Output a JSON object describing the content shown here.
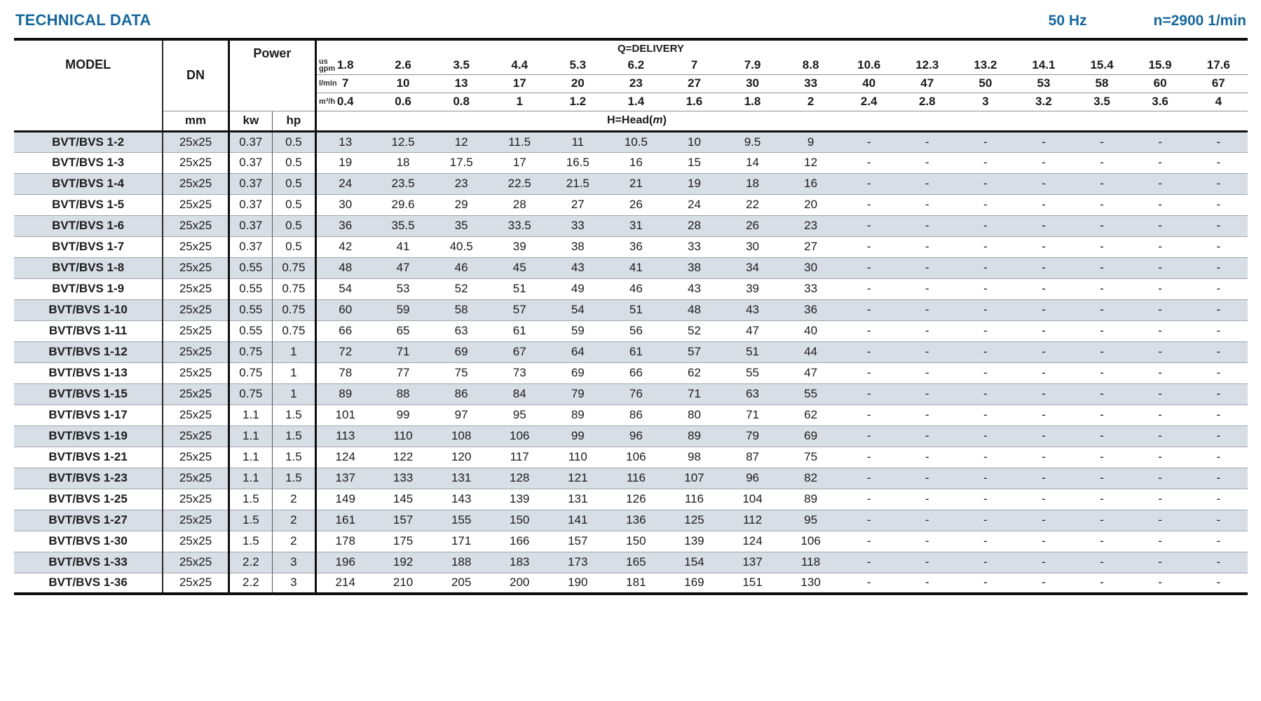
{
  "colors": {
    "accent_blue": "#15689e",
    "row_shade": "#d8dee6",
    "border_dark": "#101010"
  },
  "header_bar": {
    "title": "TECHNICAL DATA",
    "frequency": "50 Hz",
    "speed": "n=2900 1/min"
  },
  "table": {
    "model_header": "MODEL",
    "dn_header": "DN",
    "dn_unit": "mm",
    "power_header": "Power",
    "kw_header": "kw",
    "hp_header": "hp",
    "delivery_header": "Q=DELIVERY",
    "head_label": {
      "prefix": "H=Head(",
      "italic": "m",
      "suffix": ")"
    },
    "delivery_units": [
      {
        "label": "us\ngpm",
        "values": [
          "1.8",
          "2.6",
          "3.5",
          "4.4",
          "5.3",
          "6.2",
          "7",
          "7.9",
          "8.8",
          "10.6",
          "12.3",
          "13.2",
          "14.1",
          "15.4",
          "15.9",
          "17.6"
        ]
      },
      {
        "label": "l/min",
        "values": [
          "7",
          "10",
          "13",
          "17",
          "20",
          "23",
          "27",
          "30",
          "33",
          "40",
          "47",
          "50",
          "53",
          "58",
          "60",
          "67"
        ]
      },
      {
        "label": "m³/h",
        "values": [
          "0.4",
          "0.6",
          "0.8",
          "1",
          "1.2",
          "1.4",
          "1.6",
          "1.8",
          "2",
          "2.4",
          "2.8",
          "3",
          "3.2",
          "3.5",
          "3.6",
          "4"
        ]
      }
    ],
    "rows": [
      {
        "model": "BVT/BVS 1-2",
        "dn": "25x25",
        "kw": "0.37",
        "hp": "0.5",
        "head": [
          "13",
          "12.5",
          "12",
          "11.5",
          "11",
          "10.5",
          "10",
          "9.5",
          "9",
          "-",
          "-",
          "-",
          "-",
          "-",
          "-",
          "-"
        ]
      },
      {
        "model": "BVT/BVS 1-3",
        "dn": "25x25",
        "kw": "0.37",
        "hp": "0.5",
        "head": [
          "19",
          "18",
          "17.5",
          "17",
          "16.5",
          "16",
          "15",
          "14",
          "12",
          "-",
          "-",
          "-",
          "-",
          "-",
          "-",
          "-"
        ]
      },
      {
        "model": "BVT/BVS 1-4",
        "dn": "25x25",
        "kw": "0.37",
        "hp": "0.5",
        "head": [
          "24",
          "23.5",
          "23",
          "22.5",
          "21.5",
          "21",
          "19",
          "18",
          "16",
          "-",
          "-",
          "-",
          "-",
          "-",
          "-",
          "-"
        ]
      },
      {
        "model": "BVT/BVS 1-5",
        "dn": "25x25",
        "kw": "0.37",
        "hp": "0.5",
        "head": [
          "30",
          "29.6",
          "29",
          "28",
          "27",
          "26",
          "24",
          "22",
          "20",
          "-",
          "-",
          "-",
          "-",
          "-",
          "-",
          "-"
        ]
      },
      {
        "model": "BVT/BVS 1-6",
        "dn": "25x25",
        "kw": "0.37",
        "hp": "0.5",
        "head": [
          "36",
          "35.5",
          "35",
          "33.5",
          "33",
          "31",
          "28",
          "26",
          "23",
          "-",
          "-",
          "-",
          "-",
          "-",
          "-",
          "-"
        ]
      },
      {
        "model": "BVT/BVS 1-7",
        "dn": "25x25",
        "kw": "0.37",
        "hp": "0.5",
        "head": [
          "42",
          "41",
          "40.5",
          "39",
          "38",
          "36",
          "33",
          "30",
          "27",
          "-",
          "-",
          "-",
          "-",
          "-",
          "-",
          "-"
        ]
      },
      {
        "model": "BVT/BVS 1-8",
        "dn": "25x25",
        "kw": "0.55",
        "hp": "0.75",
        "head": [
          "48",
          "47",
          "46",
          "45",
          "43",
          "41",
          "38",
          "34",
          "30",
          "-",
          "-",
          "-",
          "-",
          "-",
          "-",
          "-"
        ]
      },
      {
        "model": "BVT/BVS 1-9",
        "dn": "25x25",
        "kw": "0.55",
        "hp": "0.75",
        "head": [
          "54",
          "53",
          "52",
          "51",
          "49",
          "46",
          "43",
          "39",
          "33",
          "-",
          "-",
          "-",
          "-",
          "-",
          "-",
          "-"
        ]
      },
      {
        "model": "BVT/BVS 1-10",
        "dn": "25x25",
        "kw": "0.55",
        "hp": "0.75",
        "head": [
          "60",
          "59",
          "58",
          "57",
          "54",
          "51",
          "48",
          "43",
          "36",
          "-",
          "-",
          "-",
          "-",
          "-",
          "-",
          "-"
        ]
      },
      {
        "model": "BVT/BVS 1-11",
        "dn": "25x25",
        "kw": "0.55",
        "hp": "0.75",
        "head": [
          "66",
          "65",
          "63",
          "61",
          "59",
          "56",
          "52",
          "47",
          "40",
          "-",
          "-",
          "-",
          "-",
          "-",
          "-",
          "-"
        ]
      },
      {
        "model": "BVT/BVS 1-12",
        "dn": "25x25",
        "kw": "0.75",
        "hp": "1",
        "head": [
          "72",
          "71",
          "69",
          "67",
          "64",
          "61",
          "57",
          "51",
          "44",
          "-",
          "-",
          "-",
          "-",
          "-",
          "-",
          "-"
        ]
      },
      {
        "model": "BVT/BVS 1-13",
        "dn": "25x25",
        "kw": "0.75",
        "hp": "1",
        "head": [
          "78",
          "77",
          "75",
          "73",
          "69",
          "66",
          "62",
          "55",
          "47",
          "-",
          "-",
          "-",
          "-",
          "-",
          "-",
          "-"
        ]
      },
      {
        "model": "BVT/BVS 1-15",
        "dn": "25x25",
        "kw": "0.75",
        "hp": "1",
        "head": [
          "89",
          "88",
          "86",
          "84",
          "79",
          "76",
          "71",
          "63",
          "55",
          "-",
          "-",
          "-",
          "-",
          "-",
          "-",
          "-"
        ]
      },
      {
        "model": "BVT/BVS 1-17",
        "dn": "25x25",
        "kw": "1.1",
        "hp": "1.5",
        "head": [
          "101",
          "99",
          "97",
          "95",
          "89",
          "86",
          "80",
          "71",
          "62",
          "-",
          "-",
          "-",
          "-",
          "-",
          "-",
          "-"
        ]
      },
      {
        "model": "BVT/BVS 1-19",
        "dn": "25x25",
        "kw": "1.1",
        "hp": "1.5",
        "head": [
          "113",
          "110",
          "108",
          "106",
          "99",
          "96",
          "89",
          "79",
          "69",
          "-",
          "-",
          "-",
          "-",
          "-",
          "-",
          "-"
        ]
      },
      {
        "model": "BVT/BVS 1-21",
        "dn": "25x25",
        "kw": "1.1",
        "hp": "1.5",
        "head": [
          "124",
          "122",
          "120",
          "117",
          "110",
          "106",
          "98",
          "87",
          "75",
          "-",
          "-",
          "-",
          "-",
          "-",
          "-",
          "-"
        ]
      },
      {
        "model": "BVT/BVS 1-23",
        "dn": "25x25",
        "kw": "1.1",
        "hp": "1.5",
        "head": [
          "137",
          "133",
          "131",
          "128",
          "121",
          "116",
          "107",
          "96",
          "82",
          "-",
          "-",
          "-",
          "-",
          "-",
          "-",
          "-"
        ]
      },
      {
        "model": "BVT/BVS 1-25",
        "dn": "25x25",
        "kw": "1.5",
        "hp": "2",
        "head": [
          "149",
          "145",
          "143",
          "139",
          "131",
          "126",
          "116",
          "104",
          "89",
          "-",
          "-",
          "-",
          "-",
          "-",
          "-",
          "-"
        ]
      },
      {
        "model": "BVT/BVS 1-27",
        "dn": "25x25",
        "kw": "1.5",
        "hp": "2",
        "head": [
          "161",
          "157",
          "155",
          "150",
          "141",
          "136",
          "125",
          "112",
          "95",
          "-",
          "-",
          "-",
          "-",
          "-",
          "-",
          "-"
        ]
      },
      {
        "model": "BVT/BVS 1-30",
        "dn": "25x25",
        "kw": "1.5",
        "hp": "2",
        "head": [
          "178",
          "175",
          "171",
          "166",
          "157",
          "150",
          "139",
          "124",
          "106",
          "-",
          "-",
          "-",
          "-",
          "-",
          "-",
          "-"
        ]
      },
      {
        "model": "BVT/BVS 1-33",
        "dn": "25x25",
        "kw": "2.2",
        "hp": "3",
        "head": [
          "196",
          "192",
          "188",
          "183",
          "173",
          "165",
          "154",
          "137",
          "118",
          "-",
          "-",
          "-",
          "-",
          "-",
          "-",
          "-"
        ]
      },
      {
        "model": "BVT/BVS 1-36",
        "dn": "25x25",
        "kw": "2.2",
        "hp": "3",
        "head": [
          "214",
          "210",
          "205",
          "200",
          "190",
          "181",
          "169",
          "151",
          "130",
          "-",
          "-",
          "-",
          "-",
          "-",
          "-",
          "-"
        ]
      }
    ]
  }
}
